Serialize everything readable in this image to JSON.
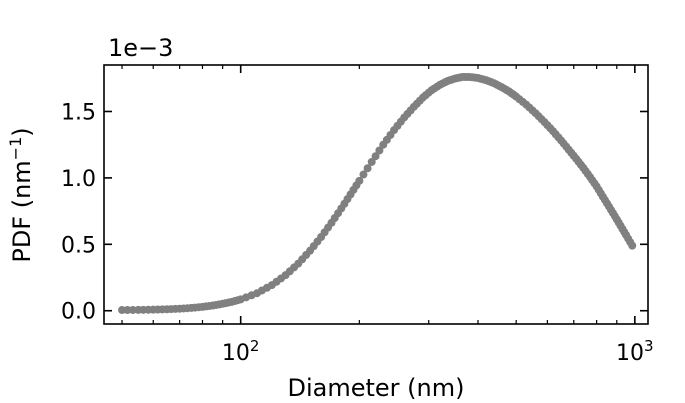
{
  "chart_data": {
    "type": "scatter",
    "xlabel": "Diameter  (nm)",
    "ylabel_main": "PDF (nm",
    "ylabel_sup": "−1",
    "ylabel_close": ")",
    "y_offset_label": "1e−3",
    "x_scale": "log",
    "xlim": [
      45,
      1080
    ],
    "ylim": [
      -0.0001,
      0.00185
    ],
    "grid": false,
    "legend": "none",
    "marker_color": "#808080",
    "x_ticks": [
      {
        "value": 100,
        "base": "10",
        "exp": "2"
      },
      {
        "value": 1000,
        "base": "10",
        "exp": "3"
      }
    ],
    "y_ticks": [
      {
        "value": 0.0,
        "label": "0.0"
      },
      {
        "value": 0.0005,
        "label": "0.5"
      },
      {
        "value": 0.001,
        "label": "1.0"
      },
      {
        "value": 0.0015,
        "label": "1.5"
      }
    ],
    "series": [
      {
        "x": [
          50,
          55,
          60,
          65,
          70,
          75,
          80,
          85,
          90,
          95,
          100,
          110,
          120,
          130,
          140,
          150,
          160,
          170,
          180,
          190,
          200,
          215,
          230,
          245,
          260,
          275,
          290,
          305,
          320,
          335,
          350,
          365,
          380,
          400,
          420,
          440,
          460,
          480,
          500,
          530,
          560,
          590,
          620,
          650,
          680,
          710,
          740,
          770,
          800,
          830,
          860,
          890,
          920,
          950,
          985
        ],
        "y": [
          5e-06,
          6e-06,
          8e-06,
          1.1e-05,
          1.5e-05,
          2.1e-05,
          2.9e-05,
          3.9e-05,
          5.2e-05,
          6.7e-05,
          8.5e-05,
          0.000132,
          0.000193,
          0.000268,
          0.000355,
          0.000452,
          0.000555,
          0.000662,
          0.00077,
          0.000876,
          0.000978,
          0.00112,
          0.00125,
          0.00136,
          0.001455,
          0.001535,
          0.001605,
          0.00166,
          0.0017,
          0.00173,
          0.001748,
          0.00176,
          0.00176,
          0.001752,
          0.001735,
          0.001712,
          0.001682,
          0.00165,
          0.001612,
          0.001552,
          0.001487,
          0.00142,
          0.001352,
          0.001282,
          0.001212,
          0.001144,
          0.001076,
          0.001006,
          0.000936,
          0.000858,
          0.000784,
          0.000712,
          0.00064,
          0.00057,
          0.00049
        ]
      }
    ]
  }
}
